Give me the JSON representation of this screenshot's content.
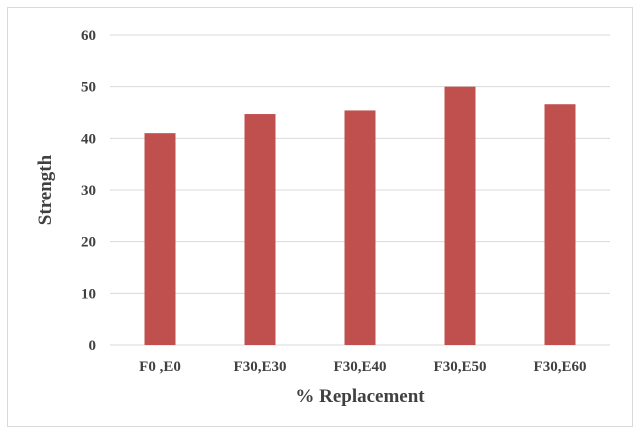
{
  "chart_data": {
    "type": "bar",
    "title": "",
    "xlabel": "% Replacement",
    "ylabel": "Strength",
    "categories": [
      "F0 ,E0",
      "F30,E30",
      "F30,E40",
      "F30,E50",
      "F30,E60"
    ],
    "values": [
      41,
      44.7,
      45.4,
      50,
      46.6
    ],
    "ylim": [
      0,
      60
    ],
    "yticks": [
      "0",
      "10",
      "20",
      "30",
      "40",
      "50",
      "60"
    ],
    "grid": true,
    "legend": "none",
    "bar_color": "#c0504d",
    "grid_color": "#d9d9d9"
  }
}
